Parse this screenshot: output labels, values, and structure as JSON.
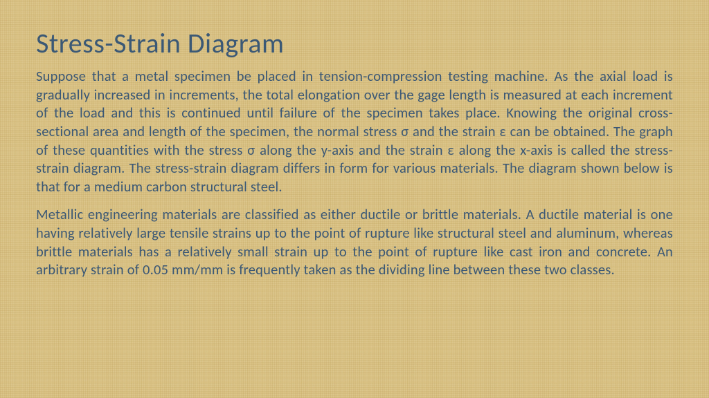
{
  "title": "Stress-Strain Diagram",
  "paragraph1": "Suppose that a metal specimen be placed in tension-compression testing machine. As the axial load is gradually increased in increments, the total elongation over the gage length is measured at each increment of the load and this is continued until failure of the specimen takes place. Knowing the original cross-sectional area and length of the specimen, the normal stress σ and the strain ε can be obtained. The graph of these quantities with the stress σ along the y-axis and the strain ε along the x-axis is called the stress-strain diagram. The stress-strain diagram differs in form for various materials. The diagram shown below is that for a medium carbon structural steel.",
  "paragraph2": "Metallic engineering materials are classified as either ductile or brittle materials. A ductile material is one having relatively large tensile strains up to the point of rupture like structural steel and aluminum, whereas brittle materials has a relatively small strain up to the point of rupture like cast iron and concrete. An arbitrary strain of 0.05 mm/mm is frequently taken as the dividing line between these two classes.",
  "colors": {
    "title_color": "#3b5875",
    "body_color": "#3b5875",
    "background_base": "#dcc58a"
  },
  "typography": {
    "title_fontsize": 40,
    "body_fontsize": 20.5,
    "font_family": "Calibri"
  }
}
